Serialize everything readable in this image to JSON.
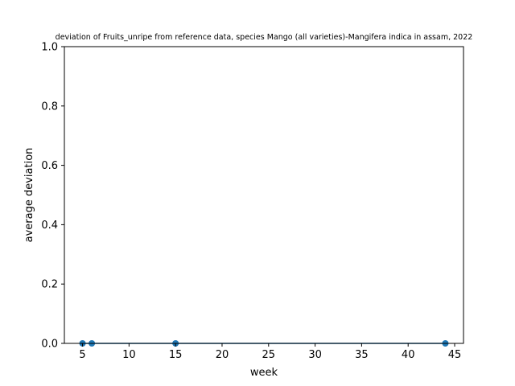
{
  "chart_data": {
    "type": "line",
    "title": "deviation of Fruits_unripe from reference data, species Mango (all varieties)-Mangifera indica in assam, 2022",
    "xlabel": "week",
    "ylabel": "average deviation",
    "xlim": [
      3.05,
      45.95
    ],
    "ylim": [
      0,
      1.0
    ],
    "xticks": [
      5,
      10,
      15,
      20,
      25,
      30,
      35,
      40,
      45
    ],
    "yticks": [
      0.0,
      0.2,
      0.4,
      0.6,
      0.8,
      1.0
    ],
    "xtick_labels": [
      "5",
      "10",
      "15",
      "20",
      "25",
      "30",
      "35",
      "40",
      "45"
    ],
    "ytick_labels": [
      "0.0",
      "0.2",
      "0.4",
      "0.6",
      "0.8",
      "1.0"
    ],
    "grid": false,
    "marker": "circle",
    "color": "#1f77b4",
    "series": [
      {
        "x": [
          5,
          6,
          15,
          44
        ],
        "values": [
          0,
          0,
          0,
          0
        ]
      }
    ]
  }
}
